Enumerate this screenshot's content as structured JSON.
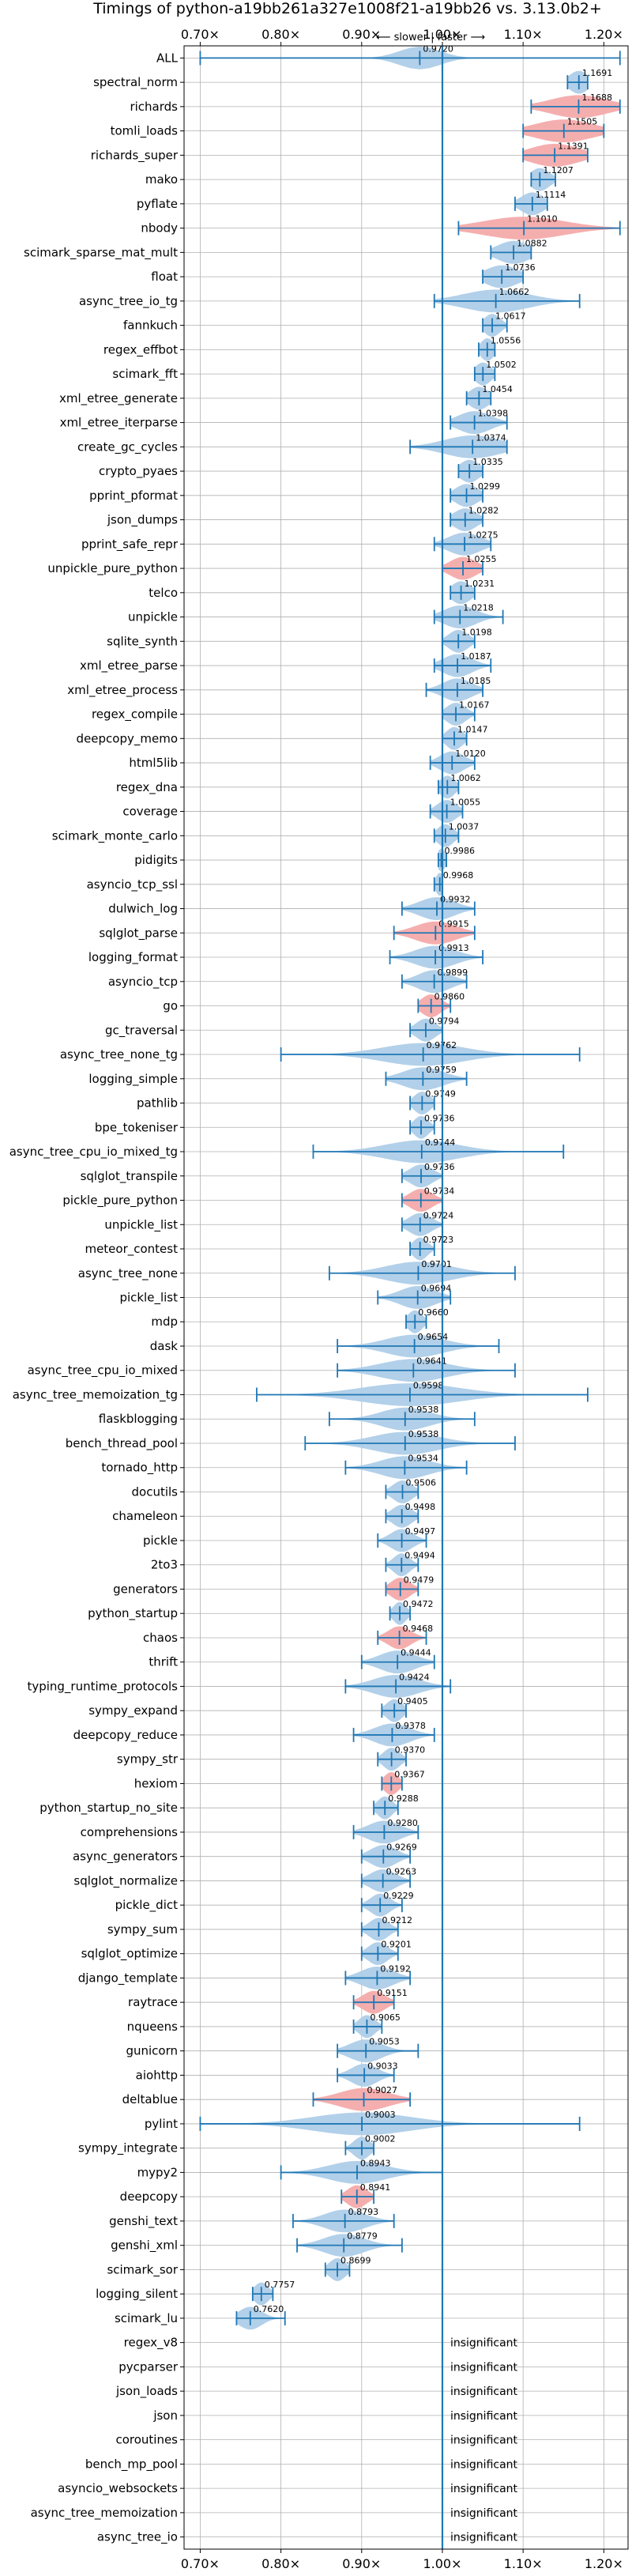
{
  "chart_data": {
    "type": "violin",
    "title": "Timings of python-a19bb261a327e1008f21-a19bb26 vs. 3.13.0b2+",
    "xlabel": "",
    "ylabel": "",
    "direction_label": "⟵ slower | faster ⟶",
    "xlim": [
      0.68,
      1.23
    ],
    "xticks": [
      0.7,
      0.8,
      0.9,
      1.0,
      1.1,
      1.2
    ],
    "xtick_labels": [
      "0.70×",
      "0.80×",
      "0.90×",
      "1.00×",
      "1.10×",
      "1.20×"
    ],
    "grid": true,
    "reference_line": 1.0,
    "colors": {
      "normal": "#aecde8",
      "slower": "#f4aaaa",
      "line": "#1f77b4",
      "grid": "#b0b0b0"
    },
    "insignificant_label": "insignificant",
    "benchmarks": [
      {
        "name": "ALL",
        "value": 0.972,
        "label": "0.9720",
        "min": 0.7,
        "max": 1.22,
        "spread": 0.025,
        "slower": false
      },
      {
        "name": "spectral_norm",
        "value": 1.1691,
        "label": "1.1691",
        "min": 1.155,
        "max": 1.18,
        "spread": 0.012,
        "slower": false
      },
      {
        "name": "richards",
        "value": 1.1688,
        "label": "1.1688",
        "min": 1.11,
        "max": 1.22,
        "spread": 0.035,
        "slower": true
      },
      {
        "name": "tomli_loads",
        "value": 1.1505,
        "label": "1.1505",
        "min": 1.1,
        "max": 1.2,
        "spread": 0.035,
        "slower": true
      },
      {
        "name": "richards_super",
        "value": 1.1391,
        "label": "1.1391",
        "min": 1.1,
        "max": 1.18,
        "spread": 0.03,
        "slower": true
      },
      {
        "name": "mako",
        "value": 1.1207,
        "label": "1.1207",
        "min": 1.11,
        "max": 1.14,
        "spread": 0.012,
        "slower": false
      },
      {
        "name": "pyflate",
        "value": 1.1114,
        "label": "1.1114",
        "min": 1.09,
        "max": 1.13,
        "spread": 0.014,
        "slower": false
      },
      {
        "name": "nbody",
        "value": 1.101,
        "label": "1.1010",
        "min": 1.02,
        "max": 1.22,
        "spread": 0.05,
        "slower": true
      },
      {
        "name": "scimark_sparse_mat_mult",
        "value": 1.0882,
        "label": "1.0882",
        "min": 1.06,
        "max": 1.11,
        "spread": 0.02,
        "slower": false
      },
      {
        "name": "float",
        "value": 1.0736,
        "label": "1.0736",
        "min": 1.05,
        "max": 1.1,
        "spread": 0.02,
        "slower": false
      },
      {
        "name": "async_tree_io_tg",
        "value": 1.0662,
        "label": "1.0662",
        "min": 0.99,
        "max": 1.17,
        "spread": 0.04,
        "slower": false
      },
      {
        "name": "fannkuch",
        "value": 1.0617,
        "label": "1.0617",
        "min": 1.05,
        "max": 1.08,
        "spread": 0.01,
        "slower": false
      },
      {
        "name": "regex_effbot",
        "value": 1.0556,
        "label": "1.0556",
        "min": 1.045,
        "max": 1.065,
        "spread": 0.008,
        "slower": false
      },
      {
        "name": "scimark_fft",
        "value": 1.0502,
        "label": "1.0502",
        "min": 1.04,
        "max": 1.065,
        "spread": 0.01,
        "slower": false
      },
      {
        "name": "xml_etree_generate",
        "value": 1.0454,
        "label": "1.0454",
        "min": 1.03,
        "max": 1.06,
        "spread": 0.012,
        "slower": false
      },
      {
        "name": "xml_etree_iterparse",
        "value": 1.0398,
        "label": "1.0398",
        "min": 1.01,
        "max": 1.08,
        "spread": 0.02,
        "slower": false
      },
      {
        "name": "create_gc_cycles",
        "value": 1.0374,
        "label": "1.0374",
        "min": 0.96,
        "max": 1.08,
        "spread": 0.035,
        "slower": false
      },
      {
        "name": "crypto_pyaes",
        "value": 1.0335,
        "label": "1.0335",
        "min": 1.02,
        "max": 1.05,
        "spread": 0.012,
        "slower": false
      },
      {
        "name": "pprint_pformat",
        "value": 1.0299,
        "label": "1.0299",
        "min": 1.01,
        "max": 1.05,
        "spread": 0.014,
        "slower": false
      },
      {
        "name": "json_dumps",
        "value": 1.0282,
        "label": "1.0282",
        "min": 1.01,
        "max": 1.05,
        "spread": 0.014,
        "slower": false
      },
      {
        "name": "pprint_safe_repr",
        "value": 1.0275,
        "label": "1.0275",
        "min": 0.99,
        "max": 1.06,
        "spread": 0.02,
        "slower": false
      },
      {
        "name": "unpickle_pure_python",
        "value": 1.0255,
        "label": "1.0255",
        "min": 1.0,
        "max": 1.05,
        "spread": 0.016,
        "slower": true
      },
      {
        "name": "telco",
        "value": 1.0231,
        "label": "1.0231",
        "min": 1.01,
        "max": 1.04,
        "spread": 0.012,
        "slower": false
      },
      {
        "name": "unpickle",
        "value": 1.0218,
        "label": "1.0218",
        "min": 0.99,
        "max": 1.075,
        "spread": 0.02,
        "slower": false
      },
      {
        "name": "sqlite_synth",
        "value": 1.0198,
        "label": "1.0198",
        "min": 1.0,
        "max": 1.04,
        "spread": 0.012,
        "slower": false
      },
      {
        "name": "xml_etree_parse",
        "value": 1.0187,
        "label": "1.0187",
        "min": 0.99,
        "max": 1.06,
        "spread": 0.018,
        "slower": false
      },
      {
        "name": "xml_etree_process",
        "value": 1.0185,
        "label": "1.0185",
        "min": 0.98,
        "max": 1.05,
        "spread": 0.018,
        "slower": false
      },
      {
        "name": "regex_compile",
        "value": 1.0167,
        "label": "1.0167",
        "min": 1.0,
        "max": 1.04,
        "spread": 0.012,
        "slower": false
      },
      {
        "name": "deepcopy_memo",
        "value": 1.0147,
        "label": "1.0147",
        "min": 1.0,
        "max": 1.03,
        "spread": 0.01,
        "slower": false
      },
      {
        "name": "html5lib",
        "value": 1.012,
        "label": "1.0120",
        "min": 0.985,
        "max": 1.04,
        "spread": 0.015,
        "slower": false
      },
      {
        "name": "regex_dna",
        "value": 1.0062,
        "label": "1.0062",
        "min": 0.995,
        "max": 1.02,
        "spread": 0.009,
        "slower": false
      },
      {
        "name": "coverage",
        "value": 1.0055,
        "label": "1.0055",
        "min": 0.985,
        "max": 1.025,
        "spread": 0.012,
        "slower": false
      },
      {
        "name": "scimark_monte_carlo",
        "value": 1.0037,
        "label": "1.0037",
        "min": 0.99,
        "max": 1.02,
        "spread": 0.01,
        "slower": false
      },
      {
        "name": "pidigits",
        "value": 0.9986,
        "label": "0.9986",
        "min": 0.995,
        "max": 1.005,
        "spread": 0.005,
        "slower": false
      },
      {
        "name": "asyncio_tcp_ssl",
        "value": 0.9968,
        "label": "0.9968",
        "min": 0.99,
        "max": 1.0,
        "spread": 0.005,
        "slower": false
      },
      {
        "name": "dulwich_log",
        "value": 0.9932,
        "label": "0.9932",
        "min": 0.95,
        "max": 1.04,
        "spread": 0.022,
        "slower": false
      },
      {
        "name": "sqlglot_parse",
        "value": 0.9915,
        "label": "0.9915",
        "min": 0.94,
        "max": 1.04,
        "spread": 0.025,
        "slower": true
      },
      {
        "name": "logging_format",
        "value": 0.9913,
        "label": "0.9913",
        "min": 0.935,
        "max": 1.05,
        "spread": 0.025,
        "slower": false
      },
      {
        "name": "asyncio_tcp",
        "value": 0.9899,
        "label": "0.9899",
        "min": 0.95,
        "max": 1.03,
        "spread": 0.02,
        "slower": false
      },
      {
        "name": "go",
        "value": 0.986,
        "label": "0.9860",
        "min": 0.97,
        "max": 1.01,
        "spread": 0.012,
        "slower": true
      },
      {
        "name": "gc_traversal",
        "value": 0.9794,
        "label": "0.9794",
        "min": 0.96,
        "max": 1.0,
        "spread": 0.012,
        "slower": false
      },
      {
        "name": "async_tree_none_tg",
        "value": 0.9762,
        "label": "0.9762",
        "min": 0.8,
        "max": 1.17,
        "spread": 0.05,
        "slower": false
      },
      {
        "name": "logging_simple",
        "value": 0.9759,
        "label": "0.9759",
        "min": 0.93,
        "max": 1.03,
        "spread": 0.025,
        "slower": false
      },
      {
        "name": "pathlib",
        "value": 0.9749,
        "label": "0.9749",
        "min": 0.96,
        "max": 0.99,
        "spread": 0.01,
        "slower": false
      },
      {
        "name": "bpe_tokeniser",
        "value": 0.9736,
        "label": "0.9736",
        "min": 0.96,
        "max": 0.99,
        "spread": 0.009,
        "slower": false
      },
      {
        "name": "async_tree_cpu_io_mixed_tg",
        "value": 0.9744,
        "label": "0.9744",
        "min": 0.84,
        "max": 1.15,
        "spread": 0.045,
        "slower": false
      },
      {
        "name": "sqlglot_transpile",
        "value": 0.9736,
        "label": "0.9736",
        "min": 0.95,
        "max": 1.0,
        "spread": 0.014,
        "slower": false
      },
      {
        "name": "pickle_pure_python",
        "value": 0.9734,
        "label": "0.9734",
        "min": 0.95,
        "max": 1.0,
        "spread": 0.014,
        "slower": true
      },
      {
        "name": "unpickle_list",
        "value": 0.9724,
        "label": "0.9724",
        "min": 0.95,
        "max": 1.0,
        "spread": 0.014,
        "slower": false
      },
      {
        "name": "meteor_contest",
        "value": 0.9723,
        "label": "0.9723",
        "min": 0.96,
        "max": 0.99,
        "spread": 0.009,
        "slower": false
      },
      {
        "name": "async_tree_none",
        "value": 0.9701,
        "label": "0.9701",
        "min": 0.86,
        "max": 1.09,
        "spread": 0.04,
        "slower": false
      },
      {
        "name": "pickle_list",
        "value": 0.9694,
        "label": "0.9694",
        "min": 0.92,
        "max": 1.01,
        "spread": 0.022,
        "slower": false
      },
      {
        "name": "mdp",
        "value": 0.966,
        "label": "0.9660",
        "min": 0.955,
        "max": 0.98,
        "spread": 0.009,
        "slower": false
      },
      {
        "name": "dask",
        "value": 0.9654,
        "label": "0.9654",
        "min": 0.87,
        "max": 1.07,
        "spread": 0.035,
        "slower": false
      },
      {
        "name": "async_tree_cpu_io_mixed",
        "value": 0.9641,
        "label": "0.9641",
        "min": 0.87,
        "max": 1.09,
        "spread": 0.04,
        "slower": false
      },
      {
        "name": "async_tree_memoization_tg",
        "value": 0.9598,
        "label": "0.9598",
        "min": 0.77,
        "max": 1.18,
        "spread": 0.06,
        "slower": false
      },
      {
        "name": "flaskblogging",
        "value": 0.9538,
        "label": "0.9538",
        "min": 0.86,
        "max": 1.04,
        "spread": 0.03,
        "slower": false
      },
      {
        "name": "bench_thread_pool",
        "value": 0.9538,
        "label": "0.9538",
        "min": 0.83,
        "max": 1.09,
        "spread": 0.04,
        "slower": false
      },
      {
        "name": "tornado_http",
        "value": 0.9534,
        "label": "0.9534",
        "min": 0.88,
        "max": 1.03,
        "spread": 0.03,
        "slower": false
      },
      {
        "name": "docutils",
        "value": 0.9506,
        "label": "0.9506",
        "min": 0.93,
        "max": 0.97,
        "spread": 0.012,
        "slower": false
      },
      {
        "name": "chameleon",
        "value": 0.9498,
        "label": "0.9498",
        "min": 0.93,
        "max": 0.97,
        "spread": 0.012,
        "slower": false
      },
      {
        "name": "pickle",
        "value": 0.9497,
        "label": "0.9497",
        "min": 0.92,
        "max": 0.98,
        "spread": 0.014,
        "slower": false
      },
      {
        "name": "2to3",
        "value": 0.9494,
        "label": "0.9494",
        "min": 0.93,
        "max": 0.97,
        "spread": 0.01,
        "slower": false
      },
      {
        "name": "generators",
        "value": 0.9479,
        "label": "0.9479",
        "min": 0.93,
        "max": 0.97,
        "spread": 0.012,
        "slower": true
      },
      {
        "name": "python_startup",
        "value": 0.9472,
        "label": "0.9472",
        "min": 0.935,
        "max": 0.96,
        "spread": 0.008,
        "slower": false
      },
      {
        "name": "chaos",
        "value": 0.9468,
        "label": "0.9468",
        "min": 0.92,
        "max": 0.98,
        "spread": 0.014,
        "slower": true
      },
      {
        "name": "thrift",
        "value": 0.9444,
        "label": "0.9444",
        "min": 0.9,
        "max": 0.99,
        "spread": 0.022,
        "slower": false
      },
      {
        "name": "typing_runtime_protocols",
        "value": 0.9424,
        "label": "0.9424",
        "min": 0.88,
        "max": 1.01,
        "spread": 0.028,
        "slower": false
      },
      {
        "name": "sympy_expand",
        "value": 0.9405,
        "label": "0.9405",
        "min": 0.925,
        "max": 0.955,
        "spread": 0.01,
        "slower": false
      },
      {
        "name": "deepcopy_reduce",
        "value": 0.9378,
        "label": "0.9378",
        "min": 0.89,
        "max": 0.99,
        "spread": 0.022,
        "slower": false
      },
      {
        "name": "sympy_str",
        "value": 0.937,
        "label": "0.9370",
        "min": 0.92,
        "max": 0.955,
        "spread": 0.01,
        "slower": false
      },
      {
        "name": "hexiom",
        "value": 0.9367,
        "label": "0.9367",
        "min": 0.925,
        "max": 0.95,
        "spread": 0.009,
        "slower": true
      },
      {
        "name": "python_startup_no_site",
        "value": 0.9288,
        "label": "0.9288",
        "min": 0.915,
        "max": 0.945,
        "spread": 0.009,
        "slower": false
      },
      {
        "name": "comprehensions",
        "value": 0.928,
        "label": "0.9280",
        "min": 0.89,
        "max": 0.97,
        "spread": 0.02,
        "slower": false
      },
      {
        "name": "async_generators",
        "value": 0.9269,
        "label": "0.9269",
        "min": 0.9,
        "max": 0.96,
        "spread": 0.016,
        "slower": false
      },
      {
        "name": "sqlglot_normalize",
        "value": 0.9263,
        "label": "0.9263",
        "min": 0.9,
        "max": 0.96,
        "spread": 0.016,
        "slower": false
      },
      {
        "name": "pickle_dict",
        "value": 0.9229,
        "label": "0.9229",
        "min": 0.9,
        "max": 0.95,
        "spread": 0.012,
        "slower": false
      },
      {
        "name": "sympy_sum",
        "value": 0.9212,
        "label": "0.9212",
        "min": 0.9,
        "max": 0.945,
        "spread": 0.012,
        "slower": false
      },
      {
        "name": "sqlglot_optimize",
        "value": 0.9201,
        "label": "0.9201",
        "min": 0.9,
        "max": 0.945,
        "spread": 0.012,
        "slower": false
      },
      {
        "name": "django_template",
        "value": 0.9192,
        "label": "0.9192",
        "min": 0.88,
        "max": 0.96,
        "spread": 0.02,
        "slower": false
      },
      {
        "name": "raytrace",
        "value": 0.9151,
        "label": "0.9151",
        "min": 0.89,
        "max": 0.94,
        "spread": 0.014,
        "slower": true
      },
      {
        "name": "nqueens",
        "value": 0.9065,
        "label": "0.9065",
        "min": 0.89,
        "max": 0.925,
        "spread": 0.01,
        "slower": false
      },
      {
        "name": "gunicorn",
        "value": 0.9053,
        "label": "0.9053",
        "min": 0.87,
        "max": 0.97,
        "spread": 0.02,
        "slower": false
      },
      {
        "name": "aiohttp",
        "value": 0.9033,
        "label": "0.9033",
        "min": 0.87,
        "max": 0.94,
        "spread": 0.016,
        "slower": false
      },
      {
        "name": "deltablue",
        "value": 0.9027,
        "label": "0.9027",
        "min": 0.84,
        "max": 0.96,
        "spread": 0.03,
        "slower": true
      },
      {
        "name": "pylint",
        "value": 0.9003,
        "label": "0.9003",
        "min": 0.7,
        "max": 1.17,
        "spread": 0.06,
        "slower": false
      },
      {
        "name": "sympy_integrate",
        "value": 0.9002,
        "label": "0.9002",
        "min": 0.88,
        "max": 0.915,
        "spread": 0.01,
        "slower": false
      },
      {
        "name": "mypy2",
        "value": 0.8943,
        "label": "0.8943",
        "min": 0.8,
        "max": 1.0,
        "spread": 0.035,
        "slower": false
      },
      {
        "name": "deepcopy",
        "value": 0.8941,
        "label": "0.8941",
        "min": 0.875,
        "max": 0.915,
        "spread": 0.012,
        "slower": true
      },
      {
        "name": "genshi_text",
        "value": 0.8793,
        "label": "0.8793",
        "min": 0.815,
        "max": 0.94,
        "spread": 0.025,
        "slower": false
      },
      {
        "name": "genshi_xml",
        "value": 0.8779,
        "label": "0.8779",
        "min": 0.82,
        "max": 0.95,
        "spread": 0.025,
        "slower": false
      },
      {
        "name": "scimark_sor",
        "value": 0.8699,
        "label": "0.8699",
        "min": 0.855,
        "max": 0.885,
        "spread": 0.01,
        "slower": false
      },
      {
        "name": "logging_silent",
        "value": 0.7757,
        "label": "0.7757",
        "min": 0.765,
        "max": 0.79,
        "spread": 0.009,
        "slower": false
      },
      {
        "name": "scimark_lu",
        "value": 0.762,
        "label": "0.7620",
        "min": 0.745,
        "max": 0.805,
        "spread": 0.014,
        "slower": false
      },
      {
        "name": "regex_v8",
        "value": null,
        "insignificant": true
      },
      {
        "name": "pycparser",
        "value": null,
        "insignificant": true
      },
      {
        "name": "json_loads",
        "value": null,
        "insignificant": true
      },
      {
        "name": "json",
        "value": null,
        "insignificant": true
      },
      {
        "name": "coroutines",
        "value": null,
        "insignificant": true
      },
      {
        "name": "bench_mp_pool",
        "value": null,
        "insignificant": true
      },
      {
        "name": "asyncio_websockets",
        "value": null,
        "insignificant": true
      },
      {
        "name": "async_tree_memoization",
        "value": null,
        "insignificant": true
      },
      {
        "name": "async_tree_io",
        "value": null,
        "insignificant": true
      }
    ]
  }
}
